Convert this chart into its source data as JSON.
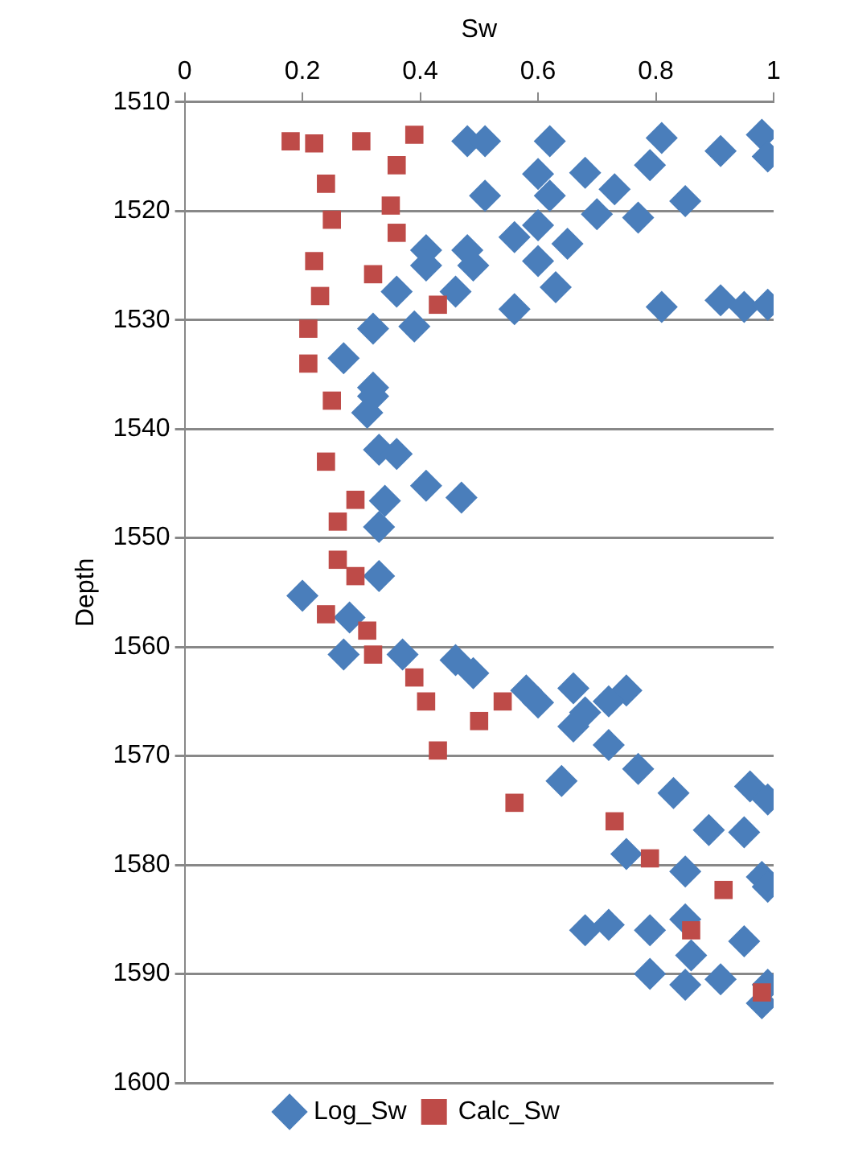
{
  "chart_data": {
    "type": "scatter",
    "xlabel": "Sw",
    "ylabel": "Depth",
    "xlim": [
      0,
      1
    ],
    "xticks": [
      0,
      0.2,
      0.4,
      0.6,
      0.8,
      1
    ],
    "ylim": [
      1600,
      1510
    ],
    "yticks": [
      1510,
      1520,
      1530,
      1540,
      1550,
      1560,
      1570,
      1580,
      1590,
      1600
    ],
    "grid": "y",
    "legend": "bottom",
    "series": [
      {
        "name": "Log_Sw",
        "color": "#4a7ebb",
        "marker": "diamond",
        "x": [
          0.48,
          0.51,
          0.62,
          0.81,
          0.91,
          0.98,
          0.99,
          0.79,
          0.6,
          0.68,
          0.51,
          0.62,
          0.73,
          0.85,
          0.7,
          0.77,
          0.6,
          0.56,
          0.65,
          0.41,
          0.48,
          0.41,
          0.49,
          0.6,
          0.63,
          0.56,
          0.36,
          0.46,
          0.81,
          0.91,
          0.95,
          0.99,
          0.32,
          0.39,
          0.27,
          0.32,
          0.32,
          0.31,
          0.33,
          0.36,
          0.41,
          0.47,
          0.34,
          0.33,
          0.33,
          0.2,
          0.28,
          0.27,
          0.37,
          0.46,
          0.49,
          0.58,
          0.66,
          0.75,
          0.68,
          0.6,
          0.72,
          0.66,
          0.72,
          0.64,
          0.77,
          0.83,
          0.96,
          0.99,
          0.89,
          0.95,
          0.75,
          0.85,
          0.98,
          0.99,
          0.68,
          0.72,
          0.79,
          0.85,
          0.79,
          0.85,
          0.91,
          0.98,
          0.99,
          0.86,
          0.95
        ],
        "values": [
          1513.6,
          1513.6,
          1513.6,
          1513.3,
          1514.5,
          1513,
          1515,
          1515.8,
          1516.6,
          1516.5,
          1518.6,
          1518.6,
          1518,
          1519.1,
          1520.3,
          1520.6,
          1521.3,
          1522.4,
          1523,
          1523.6,
          1523.6,
          1525,
          1525,
          1524.6,
          1527,
          1529,
          1527.4,
          1527.4,
          1528.8,
          1528.2,
          1528.8,
          1528.6,
          1530.8,
          1530.6,
          1533.5,
          1536.2,
          1537,
          1538.5,
          1541.9,
          1542.3,
          1545.2,
          1546.3,
          1546.6,
          1549,
          1553.5,
          1555.3,
          1557.3,
          1560.7,
          1560.7,
          1561.2,
          1562.4,
          1564,
          1563.8,
          1564,
          1566,
          1565.1,
          1565,
          1567.3,
          1569,
          1572.3,
          1571.2,
          1573.4,
          1572.8,
          1574,
          1576.8,
          1577,
          1579,
          1580.6,
          1581.1,
          1582,
          1586,
          1585.5,
          1586,
          1585,
          1590,
          1591,
          1590.5,
          1592.7,
          1591,
          1588.3,
          1587
        ]
      },
      {
        "name": "Calc_Sw",
        "color": "#be4b48",
        "marker": "square",
        "x": [
          0.18,
          0.22,
          0.3,
          0.39,
          0.36,
          0.24,
          0.35,
          0.25,
          0.36,
          0.22,
          0.32,
          0.23,
          0.43,
          0.21,
          0.21,
          0.25,
          0.24,
          0.29,
          0.26,
          0.26,
          0.29,
          0.24,
          0.31,
          0.32,
          0.39,
          0.41,
          0.54,
          0.5,
          0.43,
          0.56,
          0.73,
          0.79,
          0.915,
          0.86,
          0.98
        ],
        "values": [
          1513.6,
          1513.8,
          1513.6,
          1513,
          1515.8,
          1517.5,
          1519.5,
          1520.8,
          1522,
          1524.6,
          1525.8,
          1527.8,
          1528.6,
          1530.8,
          1534,
          1537.4,
          1543,
          1546.5,
          1548.5,
          1552,
          1553.5,
          1557,
          1558.5,
          1560.7,
          1562.8,
          1565,
          1565,
          1566.8,
          1569.5,
          1574.3,
          1576,
          1579.4,
          1582.3,
          1586,
          1591.7
        ]
      }
    ]
  }
}
